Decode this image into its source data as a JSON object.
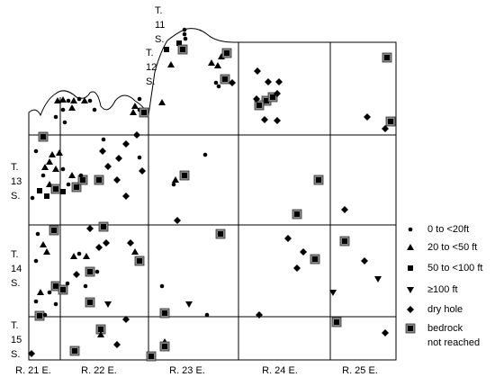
{
  "townships": [
    {
      "lines": [
        "T.",
        "11",
        "S."
      ]
    },
    {
      "lines": [
        "T.",
        "12",
        "S."
      ]
    },
    {
      "lines": [
        "T.",
        "13",
        "S."
      ]
    },
    {
      "lines": [
        "T.",
        "14",
        "S."
      ]
    },
    {
      "lines": [
        "T.",
        "15",
        "S."
      ]
    }
  ],
  "ranges": [
    "R. 21 E.",
    "R. 22 E.",
    "R. 23 E.",
    "R. 24 E.",
    "R. 25 E."
  ],
  "legend": [
    {
      "lines": [
        "0 to <20ft"
      ]
    },
    {
      "lines": [
        "20 to <50 ft"
      ]
    },
    {
      "lines": [
        "50 to <100 ft"
      ]
    },
    {
      "lines": [
        "≥100 ft"
      ]
    },
    {
      "lines": [
        "dry hole"
      ]
    },
    {
      "lines": [
        "bedrock",
        "not reached"
      ]
    }
  ]
}
